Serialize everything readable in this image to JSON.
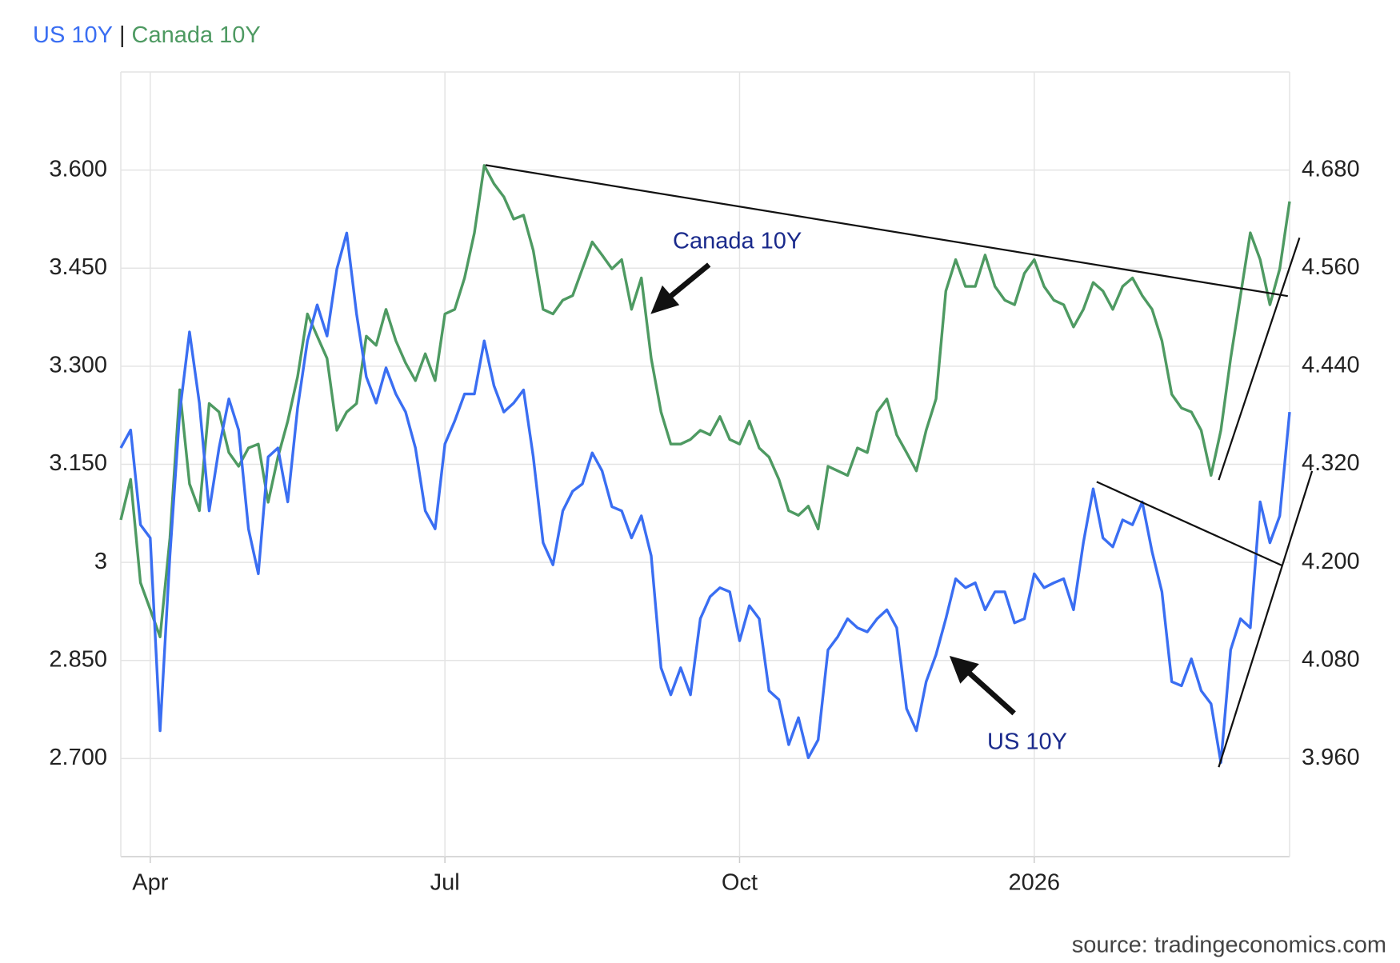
{
  "chart_data": {
    "type": "line",
    "legend_separator": "|",
    "source": "source: tradingeconomics.com",
    "annotations": [
      "Canada 10Y",
      "US 10Y"
    ],
    "categories": [
      null,
      null,
      null,
      "Apr",
      null,
      null,
      null,
      null,
      null,
      null,
      null,
      null,
      null,
      null,
      null,
      null,
      null,
      null,
      null,
      null,
      null,
      null,
      null,
      null,
      null,
      null,
      null,
      null,
      null,
      null,
      null,
      null,
      null,
      "Jul",
      null,
      null,
      null,
      null,
      null,
      null,
      null,
      null,
      null,
      null,
      null,
      null,
      null,
      null,
      null,
      null,
      null,
      null,
      null,
      null,
      null,
      null,
      null,
      null,
      null,
      null,
      null,
      null,
      null,
      "Oct",
      null,
      null,
      null,
      null,
      null,
      null,
      null,
      null,
      null,
      null,
      null,
      null,
      null,
      null,
      null,
      null,
      null,
      null,
      null,
      null,
      null,
      null,
      null,
      null,
      null,
      null,
      null,
      null,
      null,
      "2026",
      null,
      null,
      null,
      null,
      null,
      null,
      null,
      null,
      null,
      null,
      null,
      null,
      null,
      null,
      null,
      null,
      null,
      null,
      null,
      null,
      null,
      null,
      null,
      null,
      null,
      null
    ],
    "series": [
      {
        "name": "US 10Y",
        "color": "#3a6ef2",
        "axis": "y2",
        "values": [
          4.34,
          4.362,
          4.246,
          4.23,
          3.994,
          4.208,
          4.384,
          4.482,
          4.395,
          4.263,
          4.34,
          4.4,
          4.362,
          4.241,
          4.186,
          4.329,
          4.34,
          4.274,
          4.389,
          4.471,
          4.515,
          4.477,
          4.559,
          4.603,
          4.504,
          4.427,
          4.395,
          4.438,
          4.406,
          4.384,
          4.34,
          4.263,
          4.241,
          4.345,
          4.373,
          4.406,
          4.406,
          4.471,
          4.416,
          4.384,
          4.395,
          4.411,
          4.329,
          4.224,
          4.197,
          4.263,
          4.287,
          4.296,
          4.334,
          4.312,
          4.268,
          4.263,
          4.23,
          4.257,
          4.208,
          4.071,
          4.038,
          4.071,
          4.038,
          4.131,
          4.158,
          4.169,
          4.164,
          4.104,
          4.147,
          4.131,
          4.043,
          4.032,
          3.977,
          4.01,
          3.961,
          3.983,
          4.093,
          4.109,
          4.131,
          4.12,
          4.115,
          4.131,
          4.142,
          4.12,
          4.021,
          3.994,
          4.054,
          4.087,
          4.131,
          4.18,
          4.169,
          4.175,
          4.142,
          4.164,
          4.164,
          4.126,
          4.131,
          4.186,
          4.169,
          4.175,
          4.18,
          4.142,
          4.224,
          4.29,
          4.23,
          4.219,
          4.252,
          4.246,
          4.274,
          4.213,
          4.164,
          4.054,
          4.049,
          4.082,
          4.043,
          4.027,
          3.955,
          4.093,
          4.131,
          4.12,
          4.274,
          4.224,
          4.257,
          4.384
        ]
      },
      {
        "name": "Canada 10Y",
        "color": "#4e9a62",
        "values": [
          3.065,
          3.127,
          2.969,
          2.928,
          2.886,
          3.037,
          3.264,
          3.12,
          3.079,
          3.243,
          3.23,
          3.168,
          3.147,
          3.175,
          3.181,
          3.092,
          3.161,
          3.216,
          3.284,
          3.38,
          3.346,
          3.312,
          3.202,
          3.23,
          3.243,
          3.346,
          3.332,
          3.387,
          3.339,
          3.305,
          3.278,
          3.319,
          3.278,
          3.38,
          3.387,
          3.435,
          3.504,
          3.607,
          3.579,
          3.559,
          3.525,
          3.531,
          3.477,
          3.387,
          3.38,
          3.401,
          3.408,
          3.449,
          3.49,
          3.47,
          3.449,
          3.463,
          3.387,
          3.435,
          3.312,
          3.23,
          3.181,
          3.181,
          3.188,
          3.202,
          3.195,
          3.223,
          3.188,
          3.181,
          3.216,
          3.175,
          3.161,
          3.127,
          3.079,
          3.072,
          3.086,
          3.051,
          3.147,
          3.14,
          3.133,
          3.175,
          3.168,
          3.23,
          3.25,
          3.195,
          3.168,
          3.14,
          3.202,
          3.25,
          3.415,
          3.463,
          3.422,
          3.422,
          3.47,
          3.422,
          3.401,
          3.394,
          3.442,
          3.463,
          3.422,
          3.401,
          3.394,
          3.36,
          3.387,
          3.428,
          3.415,
          3.387,
          3.422,
          3.435,
          3.408,
          3.387,
          3.339,
          3.257,
          3.236,
          3.23,
          3.202,
          3.133,
          3.202,
          3.312,
          3.408,
          3.504,
          3.463,
          3.394,
          3.449,
          3.552
        ]
      }
    ],
    "ylim": [
      2.55,
      3.75
    ],
    "yticks": [
      {
        "value": 2.7,
        "label": "2.700"
      },
      {
        "value": 2.85,
        "label": "2.850"
      },
      3,
      {
        "value": 3.15,
        "label": "3.150"
      },
      {
        "value": 3.3,
        "label": "3.300"
      },
      {
        "value": 3.45,
        "label": "3.450"
      },
      {
        "value": 3.6,
        "label": "3.600"
      }
    ],
    "y2lim": [
      3.84,
      4.8
    ],
    "y2ticks": [
      {
        "value": 3.96,
        "label": "3.960"
      },
      {
        "value": 4.08,
        "label": "4.080"
      },
      {
        "value": 4.2,
        "label": "4.200"
      },
      {
        "value": 4.32,
        "label": "4.320"
      },
      {
        "value": 4.44,
        "label": "4.440"
      },
      {
        "value": 4.56,
        "label": "4.560"
      },
      {
        "value": 4.68,
        "label": "4.680"
      }
    ],
    "grid": true
  }
}
